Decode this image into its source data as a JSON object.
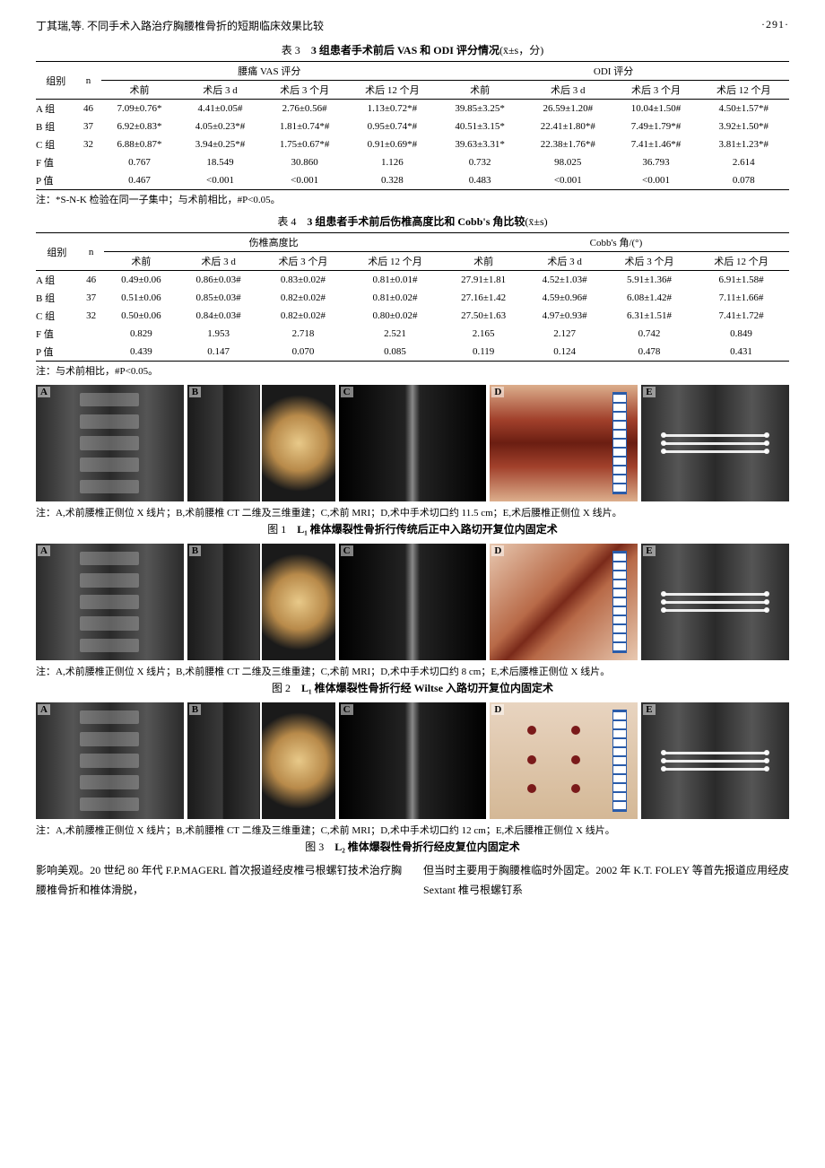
{
  "header": {
    "running": "丁其瑞,等. 不同手术入路治疗胸腰椎骨折的短期临床效果比较",
    "page": "·291·"
  },
  "table3": {
    "title_pref": "表 3　",
    "title_bold": "3 组患者手术前后 VAS 和 ODI 评分情况",
    "title_suf": "(x̄±s，分)",
    "col_group": "组别",
    "col_n": "n",
    "span1": "腰痛 VAS 评分",
    "span2": "ODI 评分",
    "cols": [
      "术前",
      "术后 3 d",
      "术后 3 个月",
      "术后 12 个月",
      "术前",
      "术后 3 d",
      "术后 3 个月",
      "术后 12 个月"
    ],
    "rows": [
      {
        "g": "A 组",
        "n": "46",
        "c": [
          "7.09±0.76*",
          "4.41±0.05#",
          "2.76±0.56#",
          "1.13±0.72*#",
          "39.85±3.25*",
          "26.59±1.20#",
          "10.04±1.50#",
          "4.50±1.57*#"
        ]
      },
      {
        "g": "B 组",
        "n": "37",
        "c": [
          "6.92±0.83*",
          "4.05±0.23*#",
          "1.81±0.74*#",
          "0.95±0.74*#",
          "40.51±3.15*",
          "22.41±1.80*#",
          "7.49±1.79*#",
          "3.92±1.50*#"
        ]
      },
      {
        "g": "C 组",
        "n": "32",
        "c": [
          "6.88±0.87*",
          "3.94±0.25*#",
          "1.75±0.67*#",
          "0.91±0.69*#",
          "39.63±3.31*",
          "22.38±1.76*#",
          "7.41±1.46*#",
          "3.81±1.23*#"
        ]
      },
      {
        "g": "F 值",
        "n": "",
        "c": [
          "0.767",
          "18.549",
          "30.860",
          "1.126",
          "0.732",
          "98.025",
          "36.793",
          "2.614"
        ]
      },
      {
        "g": "P 值",
        "n": "",
        "c": [
          "0.467",
          "<0.001",
          "<0.001",
          "0.328",
          "0.483",
          "<0.001",
          "<0.001",
          "0.078"
        ]
      }
    ],
    "note": "注：*S-N-K 检验在同一子集中；与术前相比，#P<0.05。"
  },
  "table4": {
    "title_pref": "表 4　",
    "title_bold": "3 组患者手术前后伤椎高度比和 Cobb's 角比较",
    "title_suf": "(x̄±s)",
    "span1": "伤椎高度比",
    "span2": "Cobb's 角/(°)",
    "cols": [
      "术前",
      "术后 3 d",
      "术后 3 个月",
      "术后 12 个月",
      "术前",
      "术后 3 d",
      "术后 3 个月",
      "术后 12 个月"
    ],
    "rows": [
      {
        "g": "A 组",
        "n": "46",
        "c": [
          "0.49±0.06",
          "0.86±0.03#",
          "0.83±0.02#",
          "0.81±0.01#",
          "27.91±1.81",
          "4.52±1.03#",
          "5.91±1.36#",
          "6.91±1.58#"
        ]
      },
      {
        "g": "B 组",
        "n": "37",
        "c": [
          "0.51±0.06",
          "0.85±0.03#",
          "0.82±0.02#",
          "0.81±0.02#",
          "27.16±1.42",
          "4.59±0.96#",
          "6.08±1.42#",
          "7.11±1.66#"
        ]
      },
      {
        "g": "C 组",
        "n": "32",
        "c": [
          "0.50±0.06",
          "0.84±0.03#",
          "0.82±0.02#",
          "0.80±0.02#",
          "27.50±1.63",
          "4.97±0.93#",
          "6.31±1.51#",
          "7.41±1.72#"
        ]
      },
      {
        "g": "F 值",
        "n": "",
        "c": [
          "0.829",
          "1.953",
          "2.718",
          "2.521",
          "2.165",
          "2.127",
          "0.742",
          "0.849"
        ]
      },
      {
        "g": "P 值",
        "n": "",
        "c": [
          "0.439",
          "0.147",
          "0.070",
          "0.085",
          "0.119",
          "0.124",
          "0.478",
          "0.431"
        ]
      }
    ],
    "note": "注：与术前相比，#P<0.05。"
  },
  "fig1": {
    "labels": [
      "A",
      "B",
      "C",
      "D",
      "E"
    ],
    "note": "注：A,术前腰椎正侧位 X 线片；B,术前腰椎 CT 二维及三维重建；C,术前 MRI；D,术中手术切口约 11.5 cm；E,术后腰椎正侧位 X 线片。",
    "caption_pref": "图 1　",
    "caption_text": "L₁ 椎体爆裂性骨折行传统后正中入路切开复位内固定术"
  },
  "fig2": {
    "labels": [
      "A",
      "B",
      "C",
      "D",
      "E"
    ],
    "note": "注：A,术前腰椎正侧位 X 线片；B,术前腰椎 CT 二维及三维重建；C,术前 MRI；D,术中手术切口约 8 cm；E,术后腰椎正侧位 X 线片。",
    "caption_pref": "图 2　",
    "caption_text": "L₁ 椎体爆裂性骨折行经 Wiltse 入路切开复位内固定术"
  },
  "fig3": {
    "labels": [
      "A",
      "B",
      "C",
      "D",
      "E"
    ],
    "note": "注：A,术前腰椎正侧位 X 线片；B,术前腰椎 CT 二维及三维重建；C,术前 MRI；D,术中手术切口约 12 cm；E,术后腰椎正侧位 X 线片。",
    "caption_pref": "图 3　",
    "caption_text": "L₂ 椎体爆裂性骨折行经皮复位内固定术"
  },
  "body": {
    "left": "影响美观。20 世纪 80 年代 F.P.MAGERL 首次报道经皮椎弓根螺钉技术治疗胸腰椎骨折和椎体滑脱，",
    "right": "但当时主要用于胸腰椎临时外固定。2002 年 K.T. FOLEY 等首先报道应用经皮 Sextant 椎弓根螺钉系"
  }
}
